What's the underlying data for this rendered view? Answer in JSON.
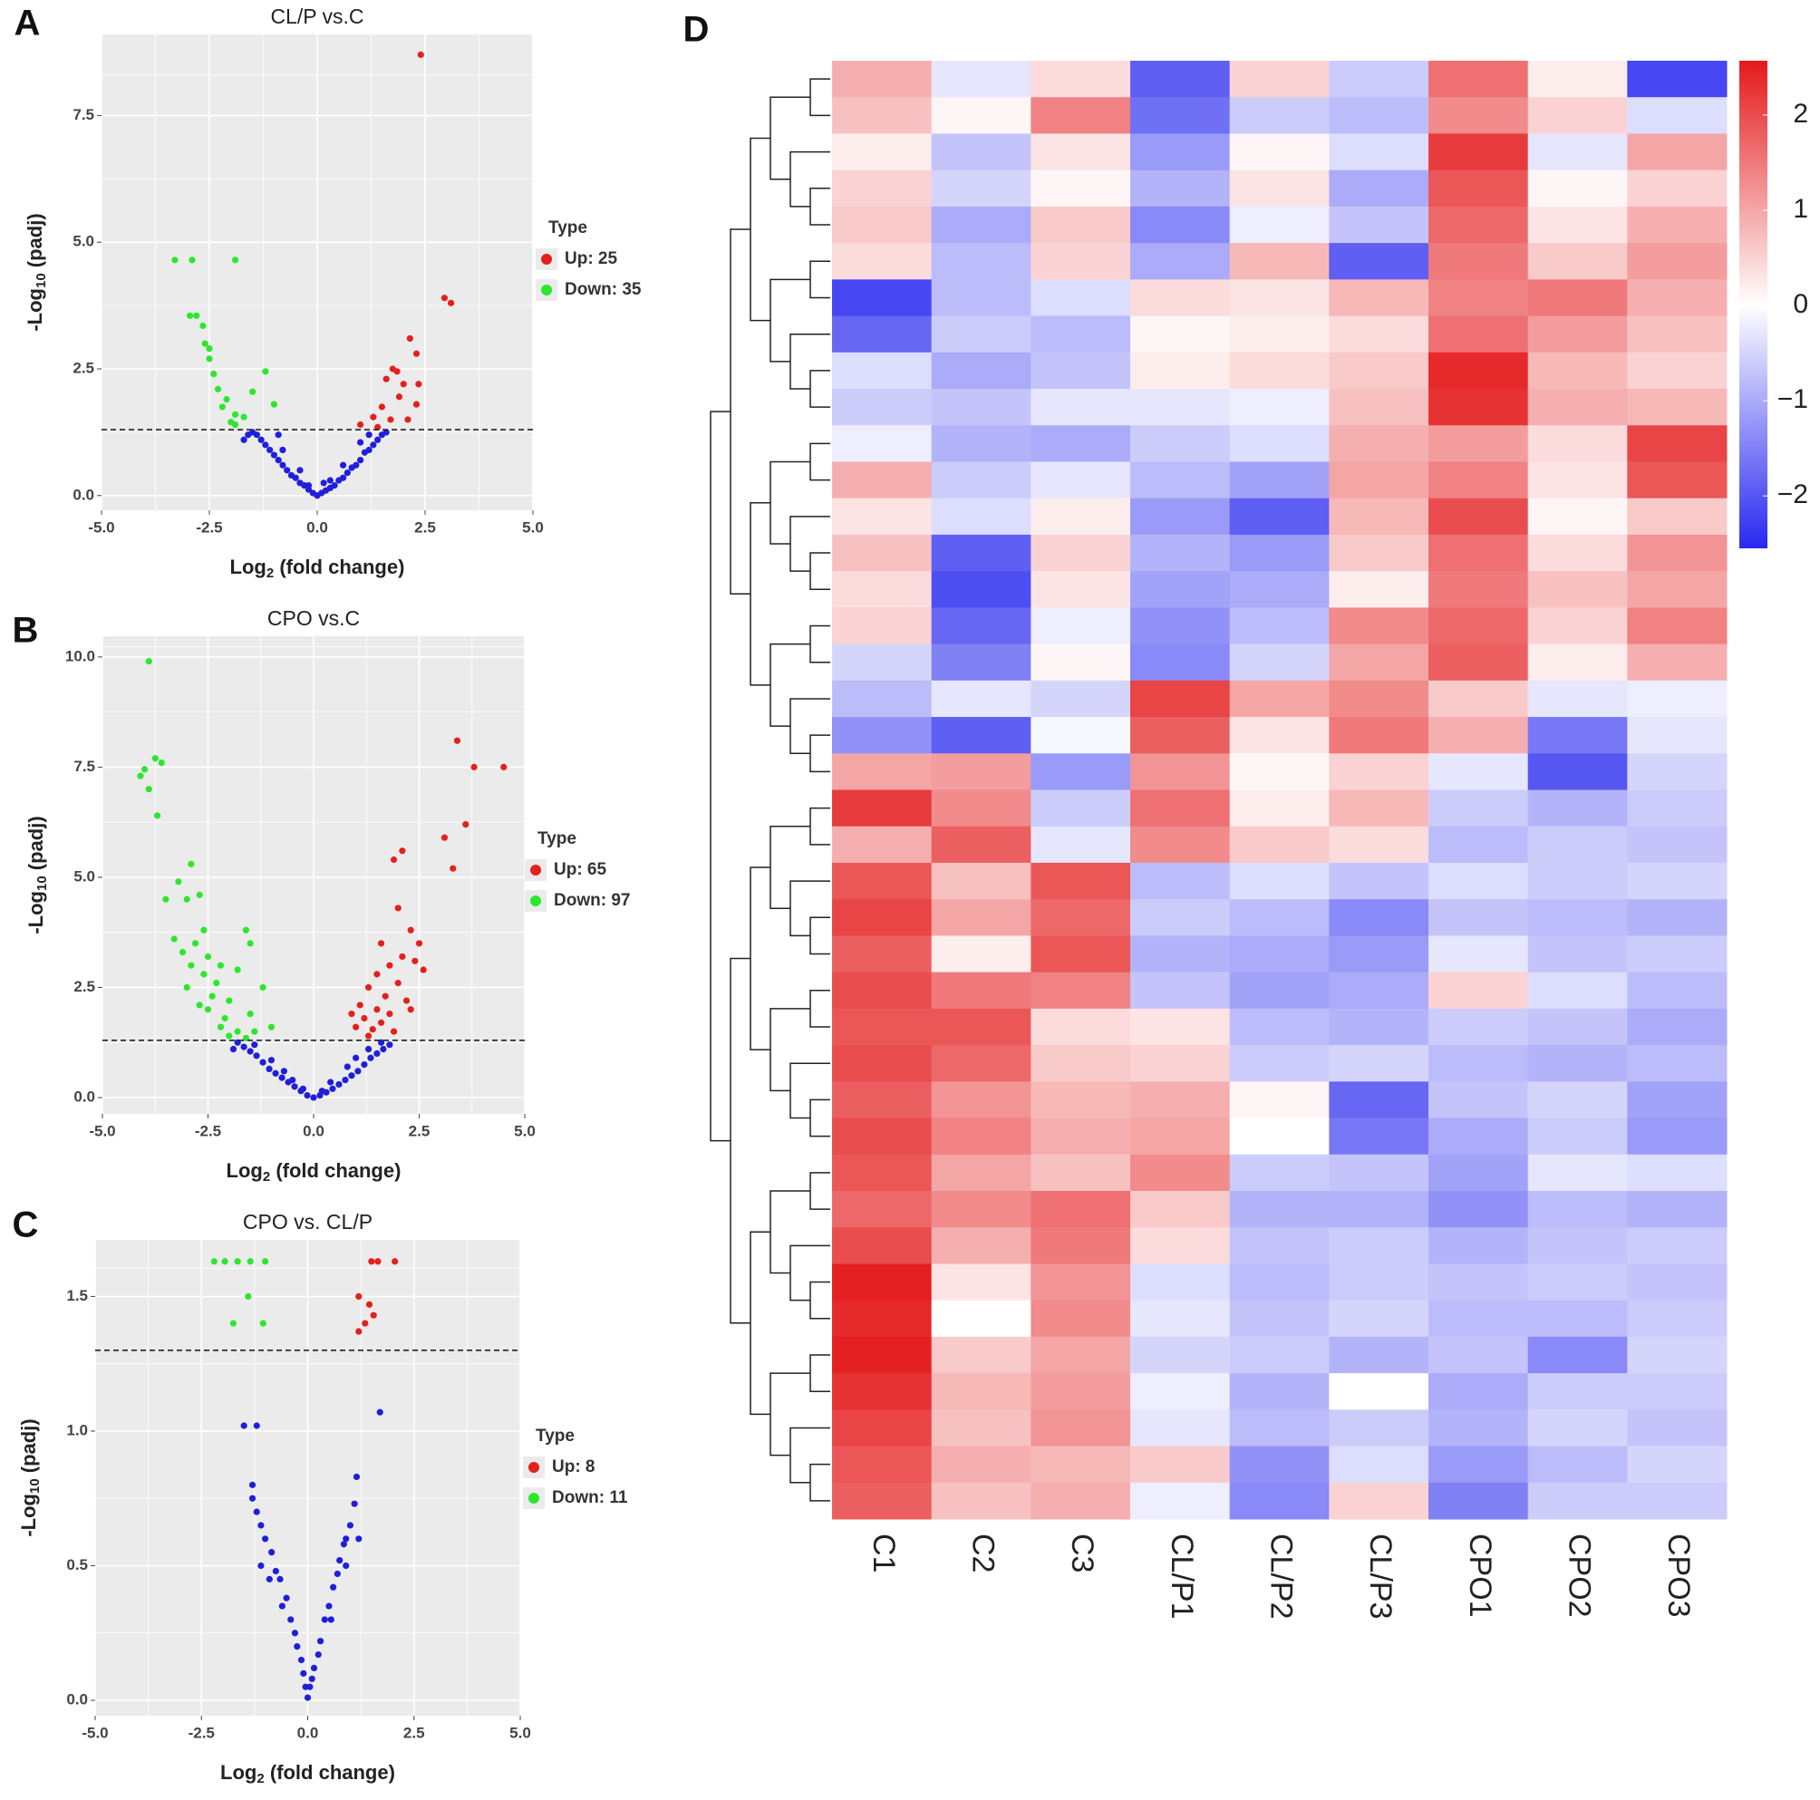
{
  "chart_data": [
    {
      "type": "scatter",
      "panel": "A",
      "title": "CL/P vs.C",
      "x_label": [
        "Log",
        "2",
        " (fold change)"
      ],
      "y_label": [
        "-Log",
        "10",
        " (padj)"
      ],
      "xlim": [
        -5,
        5
      ],
      "xticks": [
        {
          "value": -5,
          "label": "-5.0"
        },
        -2.5,
        {
          "value": 0,
          "label": "0.0"
        },
        2.5,
        {
          "value": 5,
          "label": "5.0"
        }
      ],
      "ylim": [
        -0.29,
        9.1
      ],
      "yticks": [
        {
          "value": 0,
          "label": "0.0"
        },
        2.5,
        {
          "value": 5,
          "label": "5.0"
        },
        7.5
      ],
      "threshold": 1.3,
      "legend_title": "Type",
      "grid": true,
      "series": [
        {
          "color": "#1f1fdb",
          "x": [
            0,
            0.1,
            -0.1,
            0.2,
            -0.2,
            0.3,
            -0.3,
            0.4,
            -0.4,
            0.5,
            -0.5,
            0.6,
            -0.6,
            0.7,
            -0.7,
            0.8,
            -0.8,
            0.9,
            -0.9,
            1.0,
            -1.0,
            1.1,
            -1.1,
            1.2,
            -1.2,
            1.3,
            -1.3,
            1.4,
            -1.4,
            1.5,
            -1.5,
            1.6,
            -1.6,
            0.3,
            -0.4,
            0.6,
            -0.8,
            1.2,
            -1.7,
            1.0,
            -0.9,
            -0.2,
            0.15
          ],
          "values": [
            0,
            0.05,
            0.05,
            0.1,
            0.12,
            0.15,
            0.2,
            0.2,
            0.25,
            0.3,
            0.35,
            0.35,
            0.4,
            0.45,
            0.5,
            0.55,
            0.6,
            0.6,
            0.7,
            0.7,
            0.8,
            0.85,
            0.9,
            0.9,
            1.0,
            1.0,
            1.1,
            1.1,
            1.2,
            1.2,
            1.25,
            1.25,
            1.2,
            0.3,
            0.5,
            0.6,
            0.9,
            1.2,
            1.1,
            1.05,
            1.2,
            0.2,
            0.25
          ]
        },
        {
          "name": "Up: 25",
          "color": "#e3211c",
          "x": [
            2.4,
            2.95,
            3.1,
            2.15,
            2.3,
            1.75,
            1.85,
            2.0,
            1.6,
            2.35,
            1.9,
            2.3,
            1.5,
            1.3,
            1.7,
            2.1,
            1.0,
            1.4
          ],
          "values": [
            8.7,
            3.9,
            3.8,
            3.1,
            2.8,
            2.5,
            2.45,
            2.2,
            2.3,
            2.2,
            1.95,
            1.8,
            1.75,
            1.55,
            1.5,
            1.5,
            1.4,
            1.35
          ]
        },
        {
          "name": "Down: 35",
          "color": "#2ee62e",
          "x": [
            -3.3,
            -2.9,
            -1.9,
            -2.95,
            -2.8,
            -2.65,
            -2.6,
            -2.5,
            -2.5,
            -1.2,
            -2.4,
            -2.3,
            -1.5,
            -2.1,
            -2.2,
            -1.0,
            -1.9,
            -1.7,
            -2.0,
            -1.9
          ],
          "values": [
            4.65,
            4.65,
            4.65,
            3.55,
            3.55,
            3.35,
            3.0,
            2.9,
            2.7,
            2.45,
            2.4,
            2.1,
            2.05,
            1.9,
            1.75,
            1.8,
            1.6,
            1.55,
            1.45,
            1.4
          ]
        }
      ]
    },
    {
      "type": "scatter",
      "panel": "B",
      "title": "CPO vs.C",
      "x_label": [
        "Log",
        "2",
        " (fold change)"
      ],
      "y_label": [
        "-Log",
        "10",
        " (padj)"
      ],
      "xlim": [
        -5,
        5
      ],
      "xticks": [
        {
          "value": -5,
          "label": "-5.0"
        },
        -2.5,
        {
          "value": 0,
          "label": "0.0"
        },
        2.5,
        {
          "value": 5,
          "label": "5.0"
        }
      ],
      "ylim": [
        -0.37,
        10.47
      ],
      "yticks": [
        {
          "value": 0,
          "label": "0.0"
        },
        2.5,
        {
          "value": 5,
          "label": "5.0"
        },
        7.5,
        {
          "value": 10,
          "label": "10.0"
        }
      ],
      "threshold": 1.3,
      "legend_title": "Type",
      "grid": true,
      "series": [
        {
          "color": "#1f1fdb",
          "x": [
            0,
            0.15,
            -0.15,
            0.3,
            -0.3,
            0.45,
            -0.45,
            0.6,
            -0.6,
            0.75,
            -0.75,
            0.9,
            -0.9,
            1.05,
            -1.05,
            1.2,
            -1.2,
            1.35,
            -1.35,
            1.5,
            -1.5,
            1.65,
            -1.65,
            1.8,
            -1.8,
            0.4,
            -0.5,
            0.8,
            -1.0,
            1.3,
            -1.4,
            1.6,
            -1.9,
            0.2,
            -0.25,
            1.0,
            -0.7
          ],
          "values": [
            0,
            0.05,
            0.05,
            0.12,
            0.15,
            0.2,
            0.25,
            0.3,
            0.35,
            0.4,
            0.45,
            0.5,
            0.55,
            0.6,
            0.65,
            0.75,
            0.8,
            0.9,
            0.95,
            1.0,
            1.05,
            1.1,
            1.15,
            1.2,
            1.25,
            0.35,
            0.4,
            0.7,
            0.85,
            1.1,
            1.2,
            1.25,
            1.1,
            0.15,
            0.2,
            0.9,
            0.6
          ]
        },
        {
          "name": "Up: 65",
          "color": "#e3211c",
          "x": [
            3.4,
            3.8,
            4.5,
            3.6,
            3.1,
            3.3,
            2.1,
            1.9,
            2.0,
            2.3,
            2.5,
            1.6,
            2.1,
            2.4,
            1.8,
            2.6,
            1.5,
            2.0,
            1.3,
            1.7,
            2.2,
            1.1,
            1.5,
            1.8,
            1.2,
            1.6,
            1.0,
            1.4,
            1.3,
            1.9,
            0.9,
            2.3
          ],
          "values": [
            8.1,
            7.5,
            7.5,
            6.2,
            5.9,
            5.2,
            5.6,
            5.4,
            4.3,
            3.8,
            3.5,
            3.5,
            3.2,
            3.1,
            3.0,
            2.9,
            2.8,
            2.6,
            2.5,
            2.3,
            2.2,
            2.1,
            2.0,
            1.9,
            1.8,
            1.7,
            1.6,
            1.55,
            1.4,
            1.5,
            1.9,
            2.0
          ]
        },
        {
          "name": "Down: 97",
          "color": "#2ee62e",
          "x": [
            -3.9,
            -3.75,
            -3.6,
            -4.0,
            -4.1,
            -3.9,
            -3.7,
            -2.9,
            -3.2,
            -2.7,
            -3.5,
            -3.0,
            -2.6,
            -1.6,
            -3.3,
            -2.8,
            -1.5,
            -3.1,
            -2.5,
            -2.9,
            -2.2,
            -1.8,
            -2.6,
            -2.3,
            -3.0,
            -1.2,
            -2.4,
            -2.0,
            -2.7,
            -2.5,
            -1.5,
            -2.1,
            -2.2,
            -1.8,
            -1.4,
            -1.0,
            -2.0,
            -1.6
          ],
          "values": [
            9.9,
            7.7,
            7.6,
            7.45,
            7.3,
            7.0,
            6.4,
            5.3,
            4.9,
            4.6,
            4.5,
            4.5,
            3.8,
            3.8,
            3.6,
            3.5,
            3.5,
            3.3,
            3.2,
            3.0,
            3.0,
            2.9,
            2.8,
            2.6,
            2.5,
            2.5,
            2.3,
            2.2,
            2.1,
            2.0,
            1.9,
            1.8,
            1.6,
            1.5,
            1.5,
            1.6,
            1.4,
            1.35
          ]
        }
      ]
    },
    {
      "type": "scatter",
      "panel": "C",
      "title": "CPO vs. CL/P",
      "x_label": [
        "Log",
        "2",
        " (fold change)"
      ],
      "y_label": [
        "-Log",
        "10",
        " (padj)"
      ],
      "xlim": [
        -5,
        5
      ],
      "xticks": [
        {
          "value": -5,
          "label": "-5.0"
        },
        -2.5,
        {
          "value": 0,
          "label": "0.0"
        },
        2.5,
        {
          "value": 5,
          "label": "5.0"
        }
      ],
      "ylim": [
        -0.057,
        1.71
      ],
      "yticks": [
        {
          "value": 0,
          "label": "0.0"
        },
        0.5,
        {
          "value": 1,
          "label": "1.0"
        },
        1.5
      ],
      "threshold": 1.3,
      "legend_title": "Type",
      "grid": true,
      "series": [
        {
          "color": "#1f1fdb",
          "x": [
            0,
            0.05,
            -0.05,
            0.1,
            -0.1,
            0.15,
            -0.15,
            0.25,
            -0.25,
            0.3,
            -0.3,
            0.4,
            -0.4,
            0.5,
            -0.5,
            0.6,
            -0.65,
            0.7,
            -0.75,
            0.75,
            -0.85,
            0.85,
            -1.0,
            0.9,
            -1.1,
            1.0,
            -1.2,
            1.1,
            -1.3,
            1.15,
            -1.3,
            -1.5,
            -1.2,
            1.7,
            0.55,
            -0.6,
            0.9,
            -0.9,
            1.2,
            -1.1
          ],
          "values": [
            0.01,
            0.05,
            0.05,
            0.08,
            0.1,
            0.12,
            0.15,
            0.17,
            0.2,
            0.22,
            0.25,
            0.3,
            0.3,
            0.35,
            0.38,
            0.42,
            0.45,
            0.47,
            0.48,
            0.52,
            0.55,
            0.58,
            0.6,
            0.6,
            0.65,
            0.65,
            0.7,
            0.73,
            0.75,
            0.83,
            0.8,
            1.02,
            1.02,
            1.07,
            0.3,
            0.35,
            0.5,
            0.45,
            0.6,
            0.5
          ]
        },
        {
          "name": "Up: 8",
          "color": "#e3211c",
          "x": [
            1.5,
            1.65,
            2.05,
            1.2,
            1.45,
            1.55,
            1.35,
            1.2
          ],
          "values": [
            1.63,
            1.63,
            1.63,
            1.5,
            1.47,
            1.43,
            1.4,
            1.37
          ]
        },
        {
          "name": "Down: 11",
          "color": "#2ee62e",
          "x": [
            -2.2,
            -1.95,
            -1.65,
            -1.35,
            -1.0,
            -1.4,
            -1.75,
            -1.05
          ],
          "values": [
            1.63,
            1.63,
            1.63,
            1.63,
            1.63,
            1.5,
            1.4,
            1.4
          ]
        }
      ]
    },
    {
      "type": "heatmap",
      "panel": "D",
      "categories": [
        "C1",
        "C2",
        "C3",
        "CL/P1",
        "CL/P2",
        "CL/P3",
        "CPO1",
        "CPO2",
        "CPO3"
      ],
      "clim": [
        -2.55,
        2.57
      ],
      "cticks": [
        2,
        1,
        0,
        {
          "value": -1,
          "label": "−1"
        },
        {
          "value": -2,
          "label": "−2"
        }
      ],
      "low_color": "#2828f0",
      "mid_color": "#ffffff",
      "high_color": "#e41a1c",
      "values": [
        [
          0.9,
          -0.3,
          0.4,
          -1.9,
          0.5,
          -0.6,
          1.6,
          0.2,
          -2.2
        ],
        [
          0.7,
          0.1,
          1.4,
          -1.7,
          -0.6,
          -0.8,
          1.3,
          0.5,
          -0.4
        ],
        [
          0.2,
          -0.7,
          0.3,
          -1.2,
          0.1,
          -0.4,
          2.2,
          -0.3,
          1.0
        ],
        [
          0.5,
          -0.5,
          0.1,
          -0.9,
          0.3,
          -1.0,
          1.9,
          0.1,
          0.5
        ],
        [
          0.6,
          -1.0,
          0.6,
          -1.4,
          -0.2,
          -0.7,
          1.7,
          0.3,
          0.9
        ],
        [
          0.4,
          -0.8,
          0.5,
          -1.0,
          0.8,
          -1.9,
          1.5,
          0.6,
          1.1
        ],
        [
          -2.2,
          -0.8,
          -0.4,
          0.4,
          0.3,
          0.8,
          1.4,
          1.5,
          0.9
        ],
        [
          -1.8,
          -0.6,
          -0.8,
          0.1,
          0.2,
          0.4,
          1.6,
          1.1,
          0.7
        ],
        [
          -0.4,
          -1.0,
          -0.7,
          0.2,
          0.4,
          0.6,
          2.4,
          0.8,
          0.5
        ],
        [
          -0.6,
          -0.7,
          -0.3,
          -0.3,
          -0.2,
          0.7,
          2.3,
          0.9,
          0.8
        ],
        [
          -0.2,
          -0.9,
          -1.0,
          -0.6,
          -0.4,
          0.9,
          1.1,
          0.4,
          2.1
        ],
        [
          0.9,
          -0.6,
          -0.3,
          -0.8,
          -1.1,
          1.0,
          1.4,
          0.3,
          1.9
        ],
        [
          0.3,
          -0.4,
          0.2,
          -1.2,
          -1.9,
          0.8,
          2.0,
          0.1,
          0.6
        ],
        [
          0.7,
          -1.9,
          0.5,
          -0.9,
          -1.2,
          0.6,
          1.6,
          0.4,
          1.2
        ],
        [
          0.4,
          -2.1,
          0.3,
          -1.1,
          -1.0,
          0.2,
          1.5,
          0.7,
          1.0
        ],
        [
          0.5,
          -1.8,
          -0.2,
          -1.3,
          -0.8,
          1.3,
          1.7,
          0.5,
          1.4
        ],
        [
          -0.5,
          -1.5,
          0.1,
          -1.4,
          -0.5,
          1.0,
          1.8,
          0.2,
          0.9
        ],
        [
          -0.8,
          -0.3,
          -0.5,
          2.1,
          1.0,
          1.3,
          0.6,
          -0.3,
          -0.2
        ],
        [
          -1.3,
          -1.9,
          -0.1,
          1.8,
          0.3,
          1.5,
          0.9,
          -1.6,
          -0.3
        ],
        [
          1.0,
          1.1,
          -1.2,
          1.2,
          0.1,
          0.5,
          -0.3,
          -2.0,
          -0.5
        ],
        [
          2.2,
          1.3,
          -0.6,
          1.6,
          0.2,
          0.8,
          -0.6,
          -0.9,
          -0.6
        ],
        [
          0.9,
          1.8,
          -0.3,
          1.3,
          0.6,
          0.4,
          -0.8,
          -0.6,
          -0.7
        ],
        [
          1.9,
          0.7,
          1.9,
          -0.8,
          -0.4,
          -0.7,
          -0.4,
          -0.6,
          -0.5
        ],
        [
          2.1,
          1.0,
          1.7,
          -0.6,
          -0.8,
          -1.4,
          -0.7,
          -0.8,
          -0.9
        ],
        [
          1.8,
          0.2,
          1.9,
          -0.9,
          -1.0,
          -1.2,
          -0.3,
          -0.7,
          -0.6
        ],
        [
          2.0,
          1.5,
          1.4,
          -0.7,
          -1.1,
          -1.0,
          0.5,
          -0.4,
          -0.8
        ],
        [
          1.9,
          1.9,
          0.4,
          0.3,
          -0.8,
          -0.9,
          -0.6,
          -0.7,
          -1.0
        ],
        [
          2.0,
          1.7,
          0.6,
          0.5,
          -0.6,
          -0.5,
          -0.8,
          -0.9,
          -0.8
        ],
        [
          1.8,
          1.2,
          0.8,
          0.9,
          0.1,
          -1.8,
          -0.7,
          -0.5,
          -1.1
        ],
        [
          2.0,
          1.4,
          0.9,
          1.0,
          0.0,
          -1.6,
          -1.0,
          -0.6,
          -1.2
        ],
        [
          1.9,
          1.0,
          0.7,
          1.3,
          -0.6,
          -0.7,
          -1.1,
          -0.3,
          -0.4
        ],
        [
          1.7,
          1.3,
          1.6,
          0.6,
          -0.9,
          -0.9,
          -1.3,
          -0.8,
          -0.9
        ],
        [
          2.0,
          0.9,
          1.5,
          0.4,
          -0.7,
          -0.6,
          -0.9,
          -0.7,
          -0.6
        ],
        [
          2.5,
          0.3,
          1.2,
          -0.4,
          -0.8,
          -0.6,
          -0.7,
          -0.6,
          -0.7
        ],
        [
          2.4,
          0.0,
          1.3,
          -0.3,
          -0.7,
          -0.5,
          -0.8,
          -0.8,
          -0.6
        ],
        [
          2.5,
          0.6,
          1.0,
          -0.5,
          -0.6,
          -0.9,
          -0.7,
          -1.4,
          -0.5
        ],
        [
          2.3,
          0.8,
          1.1,
          -0.2,
          -0.9,
          0.0,
          -1.0,
          -0.6,
          -0.6
        ],
        [
          2.1,
          0.7,
          1.2,
          -0.3,
          -0.8,
          -0.6,
          -0.9,
          -0.5,
          -0.7
        ],
        [
          1.9,
          0.9,
          0.8,
          0.6,
          -1.3,
          -0.4,
          -1.2,
          -0.8,
          -0.5
        ],
        [
          1.8,
          0.7,
          0.9,
          -0.2,
          -1.4,
          0.5,
          -1.5,
          -0.6,
          -0.6
        ]
      ]
    }
  ]
}
